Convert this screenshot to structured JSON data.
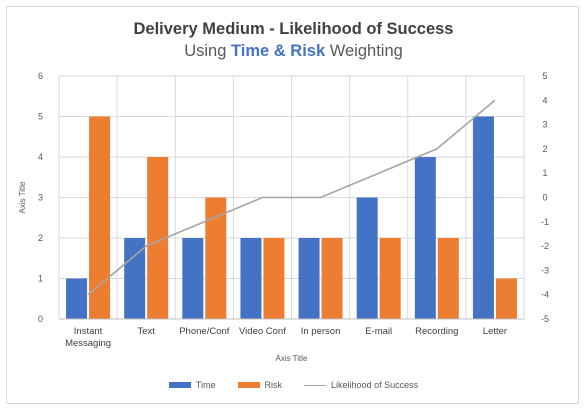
{
  "chart_data": {
    "type": "bar",
    "title": "Delivery Medium - Likelihood of Success",
    "subtitle": {
      "prefix": "Using ",
      "highlight1": "Time",
      "middle": " & ",
      "highlight2": "Risk",
      "suffix": " Weighting"
    },
    "categories": [
      "Instant Messaging",
      "Text",
      "Phone/Conf",
      "Video Conf",
      "In person",
      "E-mail",
      "Recording",
      "Letter"
    ],
    "category_labels": [
      [
        "Instant",
        "Messaging"
      ],
      [
        "Text"
      ],
      [
        "Phone/Conf"
      ],
      [
        "Video Conf"
      ],
      [
        "In person"
      ],
      [
        "E-mail"
      ],
      [
        "Recording"
      ],
      [
        "Letter"
      ]
    ],
    "series": [
      {
        "name": "Time",
        "type": "bar",
        "axis": "left",
        "color": "#4472c4",
        "values": [
          1,
          2,
          2,
          2,
          2,
          3,
          4,
          5
        ]
      },
      {
        "name": "Risk",
        "type": "bar",
        "axis": "left",
        "color": "#ed7d31",
        "values": [
          5,
          4,
          3,
          2,
          2,
          2,
          2,
          1
        ]
      },
      {
        "name": "Likelihood of Success",
        "type": "line",
        "axis": "right",
        "color": "#a5a5a5",
        "values": [
          -4,
          -2,
          -1,
          0,
          0,
          1,
          2,
          4
        ]
      }
    ],
    "xlabel": "Axis Title",
    "ylabel": "Axis Title",
    "ylim": [
      0,
      6
    ],
    "y2lim": [
      -5,
      5
    ],
    "yticks": [
      0,
      1,
      2,
      3,
      4,
      5,
      6
    ],
    "y2ticks": [
      -5,
      -4,
      -3,
      -2,
      -1,
      0,
      1,
      2,
      3,
      4,
      5
    ],
    "highlight_color": "#4472c4",
    "grid": true,
    "legend_position": "bottom"
  }
}
